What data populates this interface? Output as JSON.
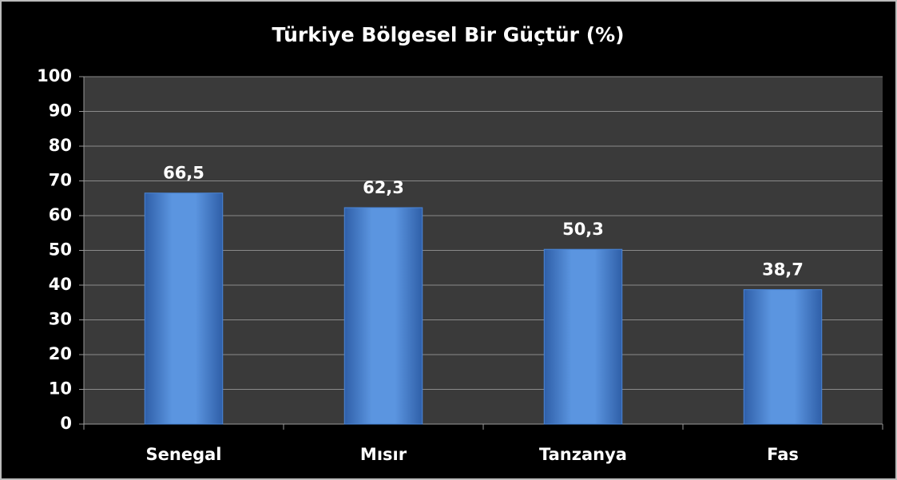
{
  "chart_data": {
    "type": "bar",
    "title": "Türkiye Bölgesel Bir Güçtür (%)",
    "categories": [
      "Senegal",
      "Mısır",
      "Tanzanya",
      "Fas"
    ],
    "values": [
      66.5,
      62.3,
      50.3,
      38.7
    ],
    "value_labels": [
      "66,5",
      "62,3",
      "50,3",
      "38,7"
    ],
    "color": "#4a86d8",
    "ylim": [
      0,
      100
    ],
    "yticks": [
      0,
      10,
      20,
      30,
      40,
      50,
      60,
      70,
      80,
      90,
      100
    ],
    "grid": true
  }
}
